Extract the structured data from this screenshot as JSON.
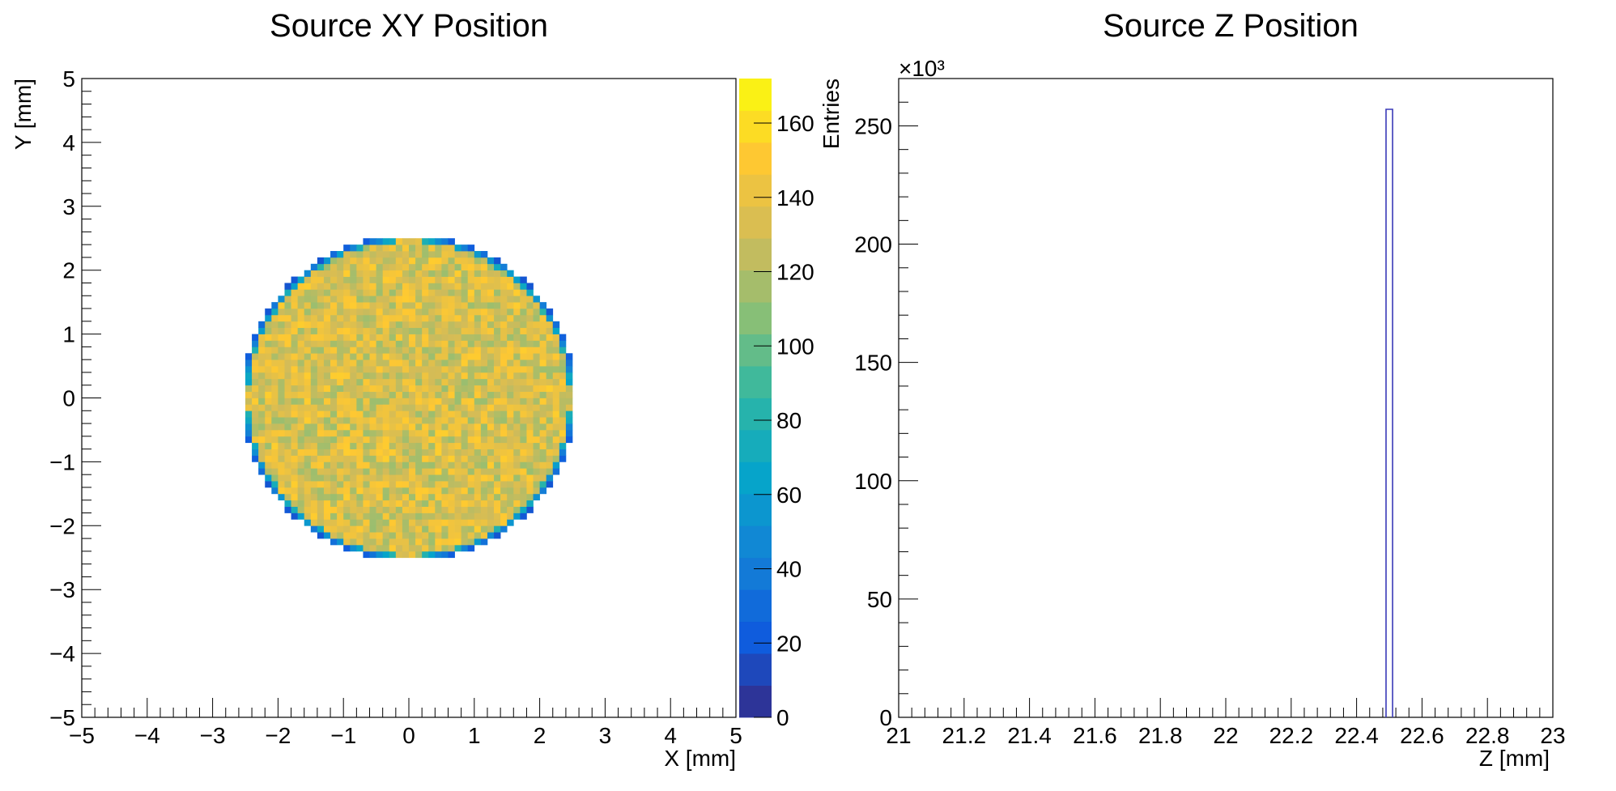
{
  "chart_data": [
    {
      "type": "heatmap",
      "title": "Source XY Position",
      "xlabel": "X [mm]",
      "ylabel": "Y [mm]",
      "zlabel": "Entries",
      "xlim": [
        -5,
        5
      ],
      "ylim": [
        -5,
        5
      ],
      "zlim": [
        0,
        172
      ],
      "x_ticks": [
        "−5",
        "−4",
        "−3",
        "−2",
        "−1",
        "0",
        "1",
        "2",
        "3",
        "4",
        "5"
      ],
      "y_ticks": [
        "−5",
        "−4",
        "−3",
        "−2",
        "−1",
        "0",
        "1",
        "2",
        "3",
        "4",
        "5"
      ],
      "z_ticks": [
        "0",
        "20",
        "40",
        "60",
        "80",
        "100",
        "120",
        "140",
        "160"
      ],
      "distribution": {
        "shape": "disk",
        "center": [
          0,
          0
        ],
        "radius_mm": 2.5,
        "bins_x": 100,
        "bins_y": 100,
        "interior_mean_entries": 133,
        "interior_spread_entries": 20,
        "edge_entries_range": [
          15,
          90
        ]
      },
      "palette": [
        "#352a87",
        "#0f5cdd",
        "#1481d6",
        "#06a4ca",
        "#2eb7a4",
        "#87bf77",
        "#d1bb59",
        "#fec832",
        "#f9fb0e"
      ],
      "grid": false,
      "legend": "colorbar-right"
    },
    {
      "type": "bar",
      "title": "Source Z Position",
      "xlabel": "Z [mm]",
      "ylabel": "",
      "y_scale_label": "×10³",
      "xlim": [
        21,
        23
      ],
      "ylim": [
        0,
        270
      ],
      "x_ticks": [
        "21",
        "21.2",
        "21.4",
        "21.6",
        "21.8",
        "22",
        "22.2",
        "22.4",
        "22.6",
        "22.8",
        "23"
      ],
      "y_ticks": [
        "0",
        "50",
        "100",
        "150",
        "200",
        "250"
      ],
      "bars": [
        {
          "x_start": 22.49,
          "x_end": 22.51,
          "value": 257
        }
      ],
      "bar_color": "#3a3ab8",
      "grid": false
    }
  ]
}
